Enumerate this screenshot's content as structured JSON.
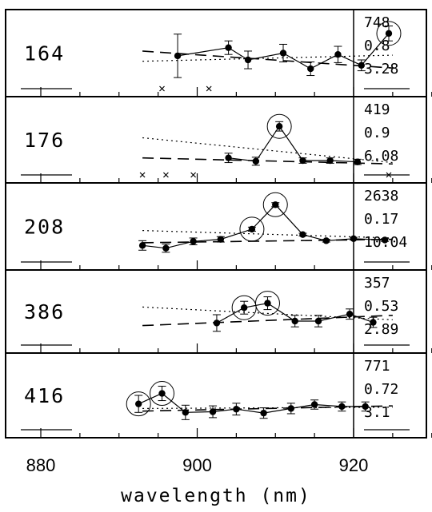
{
  "chart_data": {
    "type": "line",
    "xlabel": "wavelength (nm)",
    "xlim": [
      880,
      935
    ],
    "x_ticks": [
      "880",
      "900",
      "920"
    ],
    "panels": [
      {
        "id": "164",
        "stats": [
          "748",
          "0.8",
          "3.28"
        ],
        "ylim": [
          0,
          10
        ],
        "points": [
          {
            "x": 897.5,
            "y": 4.6,
            "err": 3.2,
            "circled": false
          },
          {
            "x": 904.0,
            "y": 5.8,
            "err": 1.0,
            "circled": false
          },
          {
            "x": 906.5,
            "y": 4.0,
            "err": 1.3,
            "circled": false
          },
          {
            "x": 911.0,
            "y": 5.0,
            "err": 1.3,
            "circled": false
          },
          {
            "x": 914.5,
            "y": 2.7,
            "err": 1.0,
            "circled": false
          },
          {
            "x": 918.0,
            "y": 4.8,
            "err": 1.2,
            "circled": false
          },
          {
            "x": 921.0,
            "y": 3.2,
            "err": 0.8,
            "circled": false
          },
          {
            "x": 924.5,
            "y": 7.9,
            "err": 1.1,
            "circled": true
          }
        ],
        "dashed": [
          [
            893.0,
            5.3
          ],
          [
            925.0,
            2.8
          ]
        ],
        "dotted": [
          [
            893.0,
            3.8
          ],
          [
            925.0,
            4.7
          ]
        ],
        "crosses": [
          895.5,
          901.5
        ]
      },
      {
        "id": "176",
        "stats": [
          "419",
          "0.9",
          "6.08"
        ],
        "ylim": [
          0,
          10
        ],
        "points": [
          {
            "x": 904.0,
            "y": 2.3,
            "err": 0.7,
            "circled": false
          },
          {
            "x": 907.5,
            "y": 1.8,
            "err": 0.6,
            "circled": false
          },
          {
            "x": 910.5,
            "y": 7.0,
            "err": 0.7,
            "circled": true
          },
          {
            "x": 913.5,
            "y": 1.9,
            "err": 0.4,
            "circled": false
          },
          {
            "x": 917.0,
            "y": 1.9,
            "err": 0.4,
            "circled": false
          },
          {
            "x": 920.5,
            "y": 1.7,
            "err": 0.4,
            "circled": false
          }
        ],
        "dashed": [
          [
            893.0,
            2.3
          ],
          [
            925.0,
            1.4
          ]
        ],
        "dotted": [
          [
            893.0,
            5.3
          ],
          [
            925.0,
            1.6
          ]
        ],
        "crosses": [
          893.0,
          896.0,
          899.5,
          924.5
        ]
      },
      {
        "id": "208",
        "stats": [
          "2638",
          "0.17",
          "10.04"
        ],
        "ylim": [
          0,
          10
        ],
        "points": [
          {
            "x": 893.0,
            "y": 2.2,
            "err": 0.7,
            "circled": false
          },
          {
            "x": 896.0,
            "y": 1.8,
            "err": 0.6,
            "circled": false
          },
          {
            "x": 899.5,
            "y": 2.8,
            "err": 0.5,
            "circled": false
          },
          {
            "x": 903.0,
            "y": 3.1,
            "err": 0.4,
            "circled": false
          },
          {
            "x": 907.0,
            "y": 4.6,
            "err": 0.3,
            "circled": true
          },
          {
            "x": 910.0,
            "y": 8.2,
            "err": 0.3,
            "circled": true
          },
          {
            "x": 913.5,
            "y": 3.8,
            "err": 0.2,
            "circled": false
          },
          {
            "x": 916.5,
            "y": 2.9,
            "err": 0.2,
            "circled": false
          },
          {
            "x": 920.0,
            "y": 3.2,
            "err": 0.2,
            "circled": false
          },
          {
            "x": 924.0,
            "y": 3.0,
            "err": 0.2,
            "circled": false
          }
        ],
        "dashed": [
          [
            893.0,
            2.6
          ],
          [
            925.0,
            3.1
          ]
        ],
        "dotted": [
          [
            893.0,
            4.4
          ],
          [
            925.0,
            3.3
          ]
        ],
        "crosses": []
      },
      {
        "id": "386",
        "stats": [
          "357",
          "0.53",
          "2.89"
        ],
        "ylim": [
          0,
          10
        ],
        "points": [
          {
            "x": 902.5,
            "y": 3.2,
            "err": 1.3,
            "circled": false
          },
          {
            "x": 906.0,
            "y": 5.6,
            "err": 1.0,
            "circled": true
          },
          {
            "x": 909.0,
            "y": 6.3,
            "err": 1.0,
            "circled": true
          },
          {
            "x": 912.5,
            "y": 3.5,
            "err": 0.9,
            "circled": false
          },
          {
            "x": 915.5,
            "y": 3.5,
            "err": 0.9,
            "circled": false
          },
          {
            "x": 919.5,
            "y": 4.6,
            "err": 0.8,
            "circled": false
          },
          {
            "x": 922.5,
            "y": 3.3,
            "err": 0.8,
            "circled": false
          }
        ],
        "dashed": [
          [
            893.0,
            2.8
          ],
          [
            925.0,
            4.4
          ]
        ],
        "dotted": [
          [
            893.0,
            5.7
          ],
          [
            925.0,
            3.7
          ]
        ],
        "crosses": []
      },
      {
        "id": "416",
        "stats": [
          "771",
          "0.72",
          "3.1"
        ],
        "ylim": [
          0,
          10
        ],
        "points": [
          {
            "x": 892.5,
            "y": 3.7,
            "err": 1.3,
            "circled": true
          },
          {
            "x": 895.5,
            "y": 5.3,
            "err": 1.1,
            "circled": true
          },
          {
            "x": 898.5,
            "y": 2.4,
            "err": 1.1,
            "circled": false
          },
          {
            "x": 902.0,
            "y": 2.5,
            "err": 0.9,
            "circled": false
          },
          {
            "x": 905.0,
            "y": 2.9,
            "err": 0.9,
            "circled": false
          },
          {
            "x": 908.5,
            "y": 2.3,
            "err": 0.8,
            "circled": false
          },
          {
            "x": 912.0,
            "y": 3.0,
            "err": 0.8,
            "circled": false
          },
          {
            "x": 915.0,
            "y": 3.6,
            "err": 0.7,
            "circled": false
          },
          {
            "x": 918.5,
            "y": 3.3,
            "err": 0.7,
            "circled": false
          },
          {
            "x": 921.5,
            "y": 3.3,
            "err": 0.7,
            "circled": false
          }
        ],
        "dashed": [
          [
            893.0,
            2.6
          ],
          [
            925.0,
            3.4
          ]
        ],
        "dotted": [
          [
            893.0,
            3.0
          ],
          [
            925.0,
            3.2
          ]
        ],
        "crosses": []
      }
    ]
  }
}
